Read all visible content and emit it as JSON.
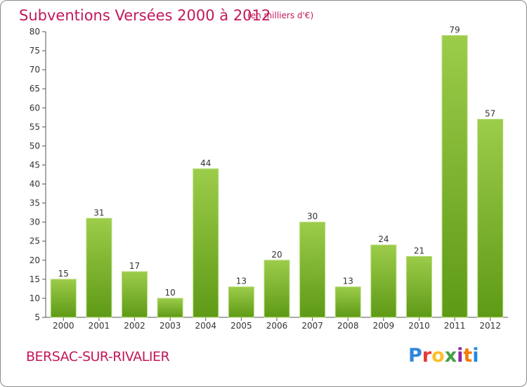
{
  "header": {
    "title": "Subventions Versées 2000 à 2012",
    "unit": "(en milliers d'€)"
  },
  "footer": {
    "commune": "BERSAC-SUR-RIVALIER",
    "logo_text": "Proxiti",
    "logo_colors": [
      "#2e86de",
      "#e53935",
      "#fbc02d",
      "#43a047",
      "#8e24aa",
      "#f57c00",
      "#1e88e5"
    ]
  },
  "chart_data": {
    "type": "bar",
    "categories": [
      "2000",
      "2001",
      "2002",
      "2003",
      "2004",
      "2005",
      "2006",
      "2007",
      "2008",
      "2009",
      "2010",
      "2011",
      "2012"
    ],
    "values": [
      15,
      31,
      17,
      10,
      44,
      13,
      20,
      30,
      13,
      24,
      21,
      79,
      57
    ],
    "title": "Subventions Versées 2000 à 2012",
    "subtitle": "(en milliers d'€)",
    "xlabel": "",
    "ylabel": "",
    "ylim": [
      5,
      80
    ],
    "yticks": [
      5,
      10,
      15,
      20,
      25,
      30,
      35,
      40,
      45,
      50,
      55,
      60,
      65,
      70,
      75,
      80
    ],
    "grid": false,
    "legend": "none",
    "bar_color_top": "#9ccc4a",
    "bar_color_bottom": "#5e9a16",
    "bar_edge": "#b7dc7a"
  }
}
